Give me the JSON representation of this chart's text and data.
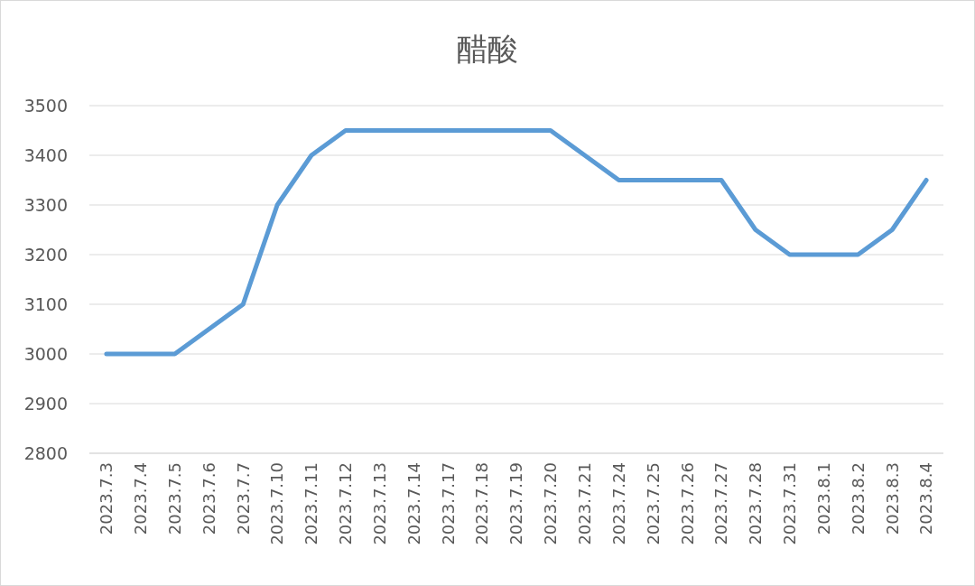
{
  "chart_data": {
    "type": "line",
    "title": "醋酸",
    "categories": [
      "2023.7.3",
      "2023.7.4",
      "2023.7.5",
      "2023.7.6",
      "2023.7.7",
      "2023.7.10",
      "2023.7.11",
      "2023.7.12",
      "2023.7.13",
      "2023.7.14",
      "2023.7.17",
      "2023.7.18",
      "2023.7.19",
      "2023.7.20",
      "2023.7.21",
      "2023.7.24",
      "2023.7.25",
      "2023.7.26",
      "2023.7.27",
      "2023.7.28",
      "2023.7.31",
      "2023.8.1",
      "2023.8.2",
      "2023.8.3",
      "2023.8.4"
    ],
    "series": [
      {
        "color": "#5b9bd5",
        "values": [
          3000,
          3000,
          3000,
          3050,
          3100,
          3300,
          3400,
          3450,
          3450,
          3450,
          3450,
          3450,
          3450,
          3450,
          3400,
          3350,
          3350,
          3350,
          3350,
          3250,
          3200,
          3200,
          3200,
          3250,
          3350
        ]
      }
    ],
    "ylim": [
      2800,
      3500
    ],
    "yticks": [
      2800,
      2900,
      3000,
      3100,
      3200,
      3300,
      3400,
      3500
    ],
    "grid": "y",
    "marker": "none",
    "line_style": "solid"
  }
}
